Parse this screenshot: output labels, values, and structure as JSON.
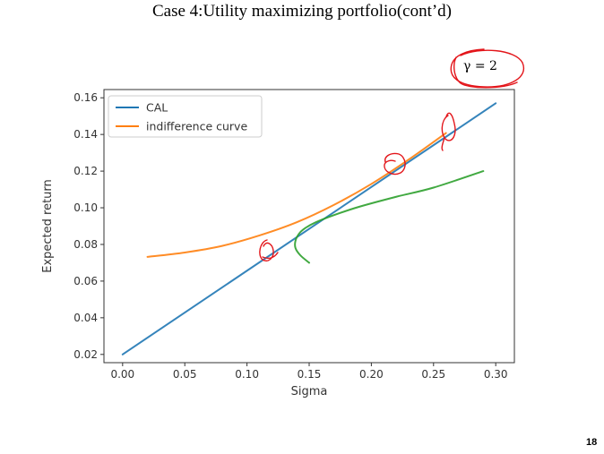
{
  "slide": {
    "title": "Case 4:Utility maximizing portfolio(cont’d)",
    "annotation": "γ = 2",
    "page_number": "18"
  },
  "chart_data": {
    "type": "line",
    "title": "",
    "xlabel": "Sigma",
    "ylabel": "Expected return",
    "xlim": [
      -0.015,
      0.315
    ],
    "ylim": [
      0.0155,
      0.1645
    ],
    "xticks": [
      "0.00",
      "0.05",
      "0.10",
      "0.15",
      "0.20",
      "0.25",
      "0.30"
    ],
    "yticks": [
      "0.02",
      "0.04",
      "0.06",
      "0.08",
      "0.10",
      "0.12",
      "0.14",
      "0.16"
    ],
    "legend_position": "upper-left",
    "series": [
      {
        "name": "CAL",
        "color": "#1f77b4",
        "x": [
          0.0,
          0.3
        ],
        "y": [
          0.02,
          0.157
        ]
      },
      {
        "name": "indifference curve",
        "color": "#ff7f0e",
        "x": [
          0.02,
          0.05,
          0.08,
          0.11,
          0.14,
          0.17,
          0.2,
          0.23,
          0.26
        ],
        "y": [
          0.0732,
          0.0756,
          0.0792,
          0.0849,
          0.0921,
          0.1016,
          0.113,
          0.1263,
          0.1408
        ]
      },
      {
        "name": "",
        "color": "#2ca02c",
        "x": [
          0.15,
          0.143,
          0.139,
          0.139,
          0.142,
          0.147,
          0.155,
          0.17,
          0.19,
          0.22,
          0.25,
          0.29
        ],
        "y": [
          0.07,
          0.074,
          0.078,
          0.082,
          0.086,
          0.089,
          0.092,
          0.096,
          0.1005,
          0.106,
          0.111,
          0.12
        ]
      }
    ]
  }
}
